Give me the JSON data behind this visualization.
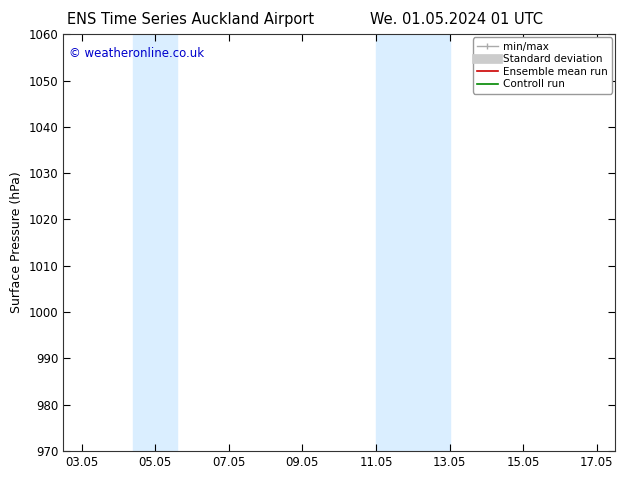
{
  "title_left": "ENS Time Series Auckland Airport",
  "title_right": "We. 01.05.2024 01 UTC",
  "ylabel": "Surface Pressure (hPa)",
  "ylim": [
    970,
    1060
  ],
  "yticks": [
    970,
    980,
    990,
    1000,
    1010,
    1020,
    1030,
    1040,
    1050,
    1060
  ],
  "xlim": [
    2.5,
    17.5
  ],
  "xtick_labels": [
    "03.05",
    "05.05",
    "07.05",
    "09.05",
    "11.05",
    "13.05",
    "15.05",
    "17.05"
  ],
  "xtick_positions": [
    3,
    5,
    7,
    9,
    11,
    13,
    15,
    17
  ],
  "shaded_bands": [
    {
      "x_start": 4.4,
      "x_end": 5.6
    },
    {
      "x_start": 11.0,
      "x_end": 13.0
    }
  ],
  "band_color": "#daeeff",
  "background_color": "#ffffff",
  "plot_bg_color": "#ffffff",
  "copyright_text": "© weatheronline.co.uk",
  "copyright_color": "#0000cc",
  "legend_labels": [
    "min/max",
    "Standard deviation",
    "Ensemble mean run",
    "Controll run"
  ],
  "legend_colors": [
    "#aaaaaa",
    "#cccccc",
    "#cc0000",
    "#008800"
  ],
  "title_fontsize": 10.5,
  "tick_fontsize": 8.5,
  "ylabel_fontsize": 9,
  "legend_fontsize": 7.5,
  "copyright_fontsize": 8.5
}
